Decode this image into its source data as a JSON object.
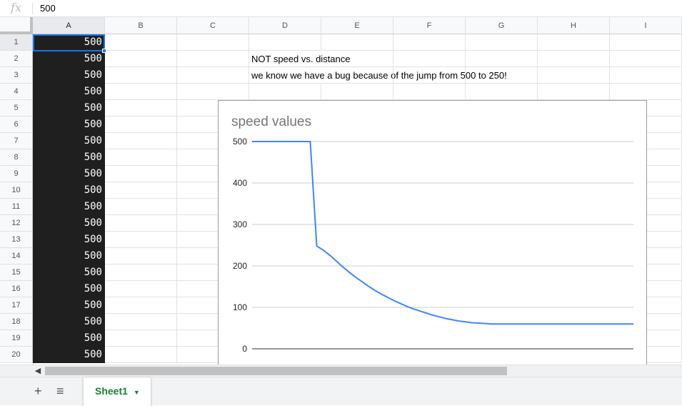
{
  "formula_bar": {
    "fx_icon": "fx",
    "value": "500"
  },
  "columns": [
    "A",
    "B",
    "C",
    "D",
    "E",
    "F",
    "G",
    "H",
    "I"
  ],
  "rows": [
    "1",
    "2",
    "3",
    "4",
    "5",
    "6",
    "7",
    "8",
    "9",
    "10",
    "11",
    "12",
    "13",
    "14",
    "15",
    "16",
    "17",
    "18",
    "19",
    "20"
  ],
  "column_a_values": [
    "500",
    "500",
    "500",
    "500",
    "500",
    "500",
    "500",
    "500",
    "500",
    "500",
    "500",
    "500",
    "500",
    "500",
    "500",
    "500",
    "500",
    "500",
    "500",
    "500"
  ],
  "cells": {
    "D2": "NOT speed vs. distance",
    "D3": "we know we have a bug because of the jump from 500 to 250!"
  },
  "colors": {
    "selection": "#1a73e8",
    "line": "#4285f4",
    "column_a_bg": "#1f1f1f",
    "tab_text": "#188038"
  },
  "chart_data": {
    "type": "line",
    "title": "speed values",
    "xlabel": "",
    "ylabel": "",
    "ylim": [
      0,
      500
    ],
    "yticks": [
      "0",
      "100",
      "200",
      "300",
      "400",
      "500"
    ],
    "grid": true,
    "legend": "none",
    "values": [
      500,
      500,
      500,
      500,
      500,
      500,
      500,
      500,
      500,
      500,
      248,
      238,
      226,
      212,
      198,
      185,
      173,
      162,
      151,
      141,
      132,
      124,
      116,
      109,
      102,
      96,
      91,
      86,
      81,
      77,
      73,
      70,
      67,
      65,
      63,
      62,
      61,
      60,
      60,
      60,
      60,
      60,
      60,
      60,
      60,
      60,
      60,
      60,
      60,
      60,
      60,
      60,
      60,
      60,
      60,
      60,
      60,
      60,
      60,
      60
    ]
  },
  "sheet_tabs": [
    {
      "label": "Sheet1",
      "active": true
    }
  ],
  "icons": {
    "add": "plus-icon",
    "list": "menu-icon",
    "scroll_left": "chevron-left-icon",
    "tab_menu": "caret-down-icon"
  }
}
